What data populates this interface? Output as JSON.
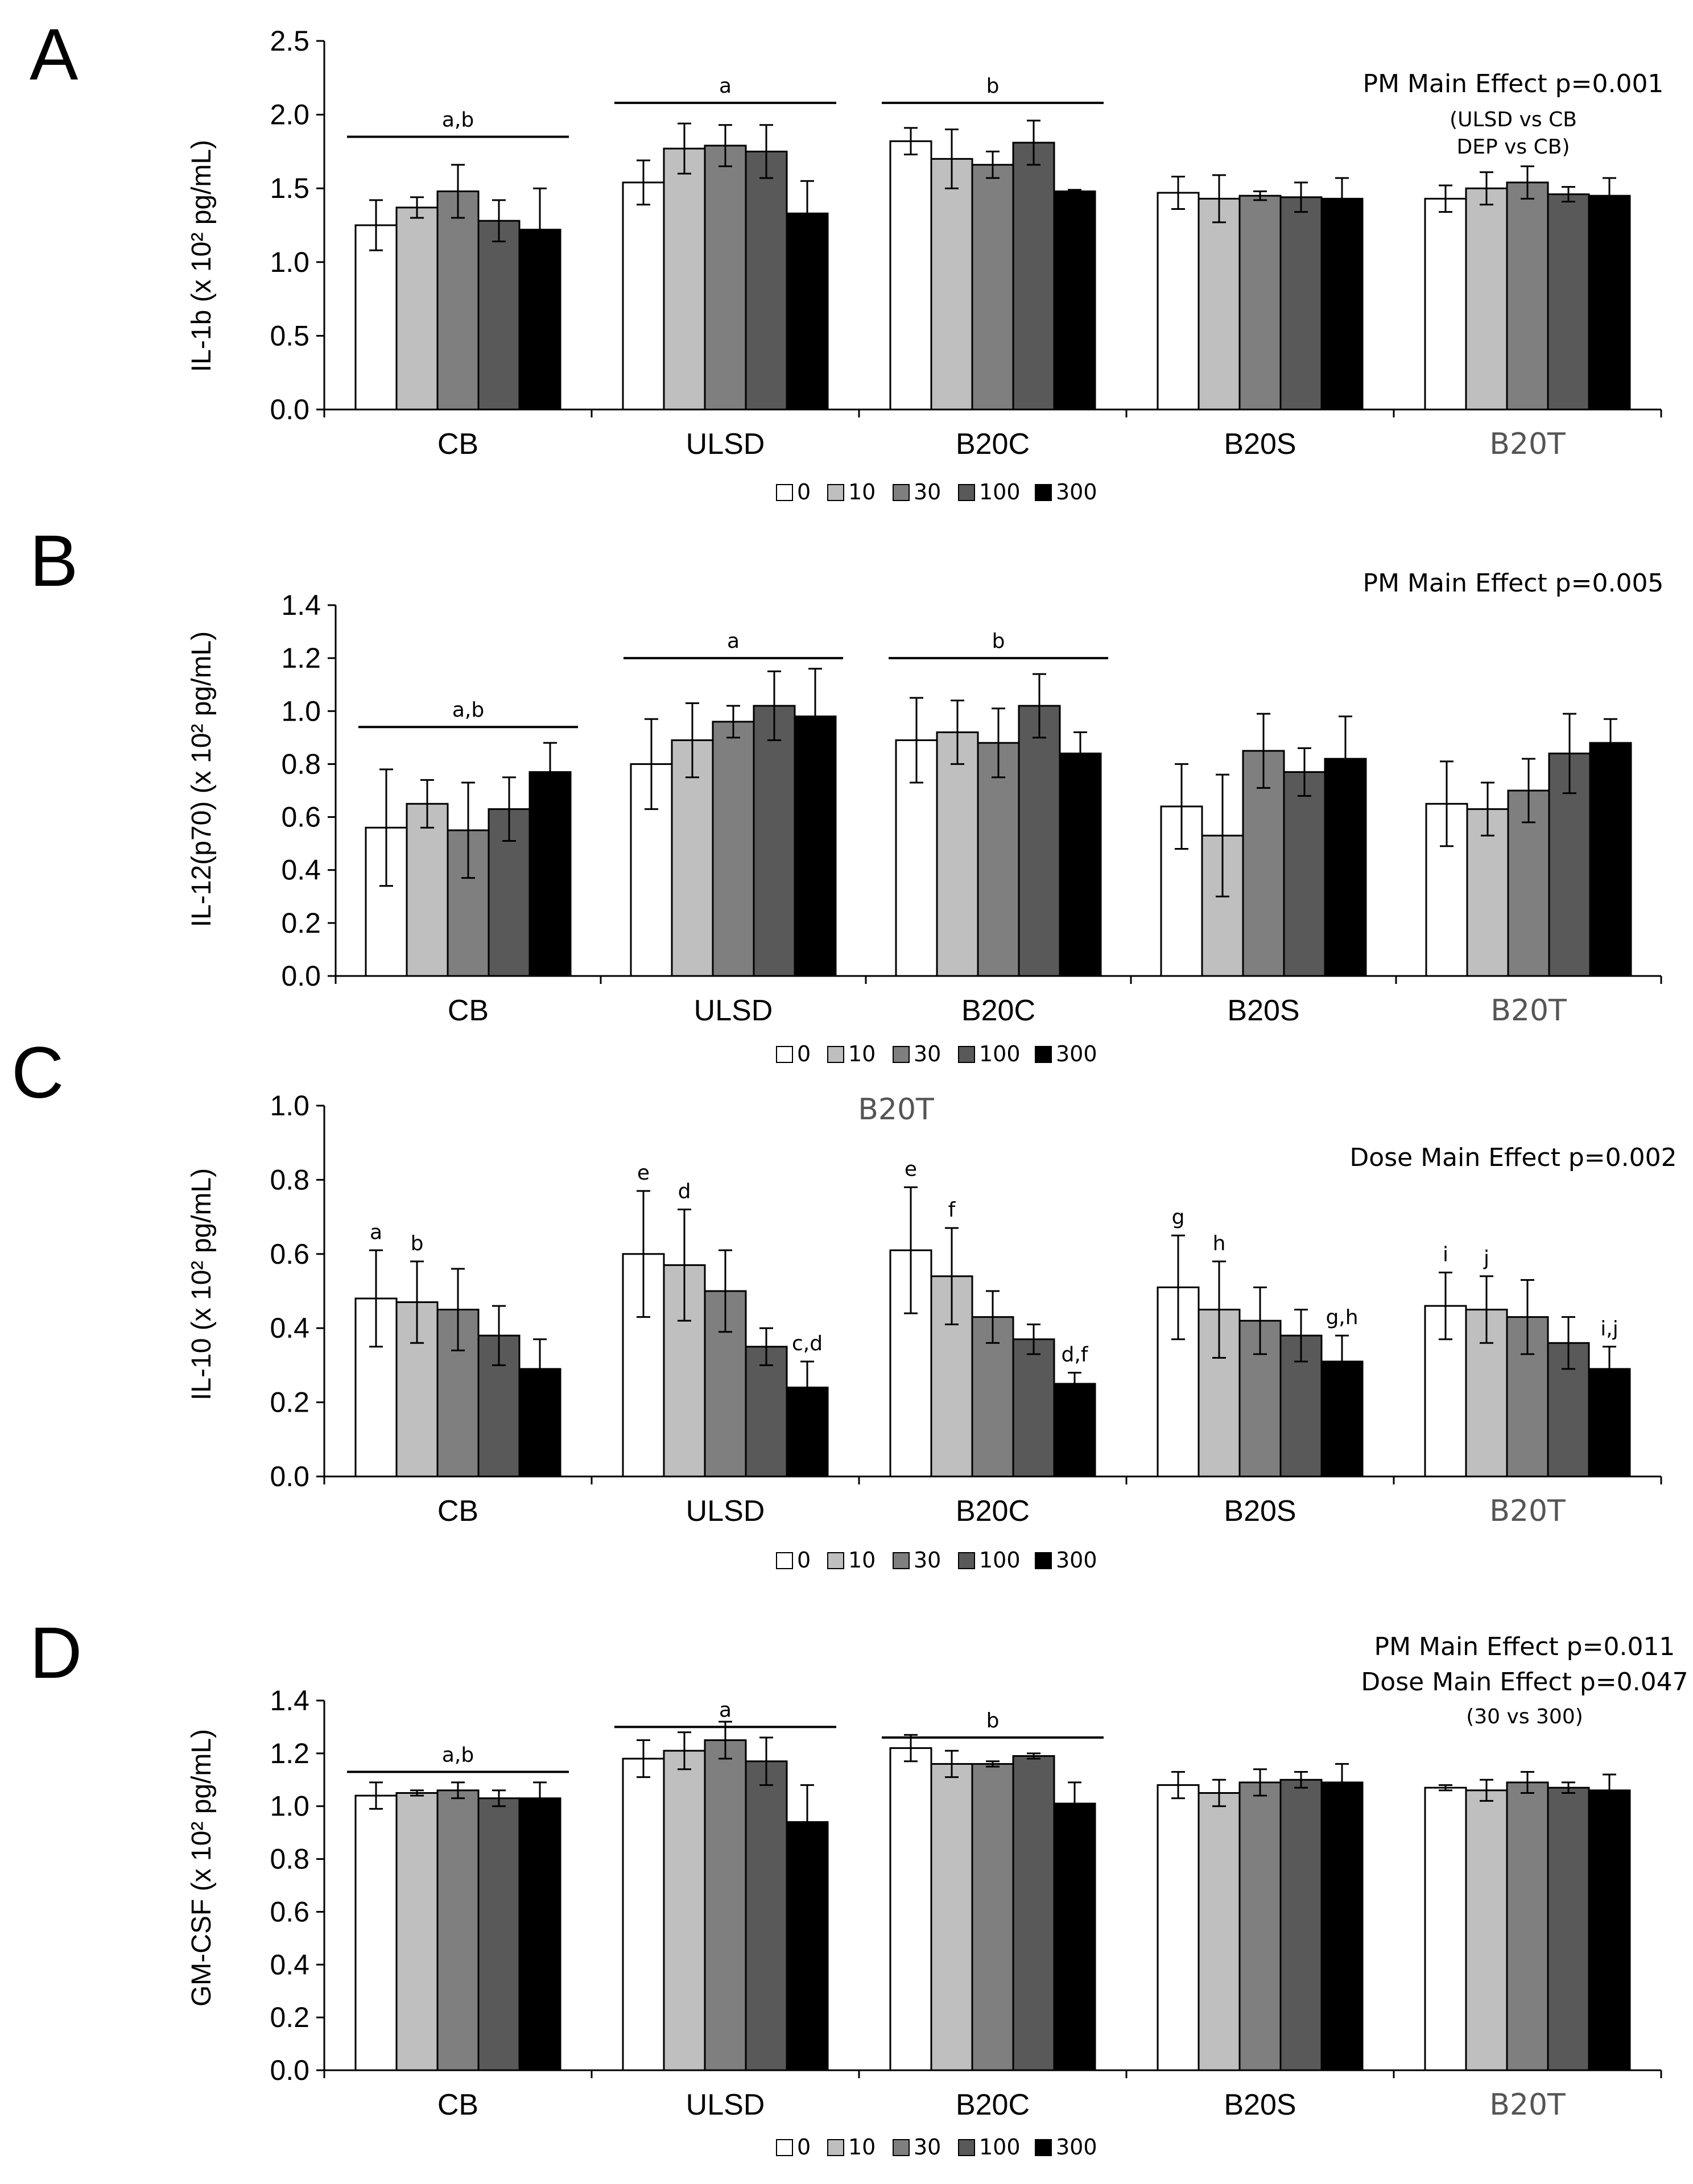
{
  "figure": {
    "categories": [
      "CB",
      "ULSD",
      "B20C",
      "B20S",
      "B20T"
    ],
    "legend": [
      "0",
      "10",
      "30",
      "100",
      "300"
    ],
    "colors": {
      "0": "#ffffff",
      "10": "#bfbfbf",
      "30": "#7f7f7f",
      "100": "#595959",
      "300": "#000000",
      "axis": "#000000",
      "light_label": "#555555"
    },
    "stray_label": "B20T"
  },
  "chart_data": [
    {
      "type": "bar",
      "panel": "A",
      "ylabel": "IL-1b (x 10² pg/mL)",
      "ylim": [
        0,
        2.5
      ],
      "yticks": [
        "0.0",
        "0.5",
        "1.0",
        "1.5",
        "2.0",
        "2.5"
      ],
      "annotations": [
        "PM Main Effect p=0.001",
        "(ULSD vs CB",
        "DEP vs CB)"
      ],
      "series": [
        {
          "name": "0",
          "values": [
            1.25,
            1.54,
            1.82,
            1.47,
            1.43
          ],
          "errors": [
            0.17,
            0.15,
            0.09,
            0.11,
            0.09
          ]
        },
        {
          "name": "10",
          "values": [
            1.37,
            1.77,
            1.7,
            1.43,
            1.5
          ],
          "errors": [
            0.07,
            0.17,
            0.2,
            0.16,
            0.11
          ]
        },
        {
          "name": "30",
          "values": [
            1.48,
            1.79,
            1.66,
            1.45,
            1.54
          ],
          "errors": [
            0.18,
            0.14,
            0.09,
            0.03,
            0.11
          ]
        },
        {
          "name": "100",
          "values": [
            1.28,
            1.75,
            1.81,
            1.44,
            1.46
          ],
          "errors": [
            0.14,
            0.18,
            0.15,
            0.1,
            0.05
          ]
        },
        {
          "name": "300",
          "values": [
            1.22,
            1.33,
            1.48,
            1.43,
            1.45
          ],
          "errors": [
            0.28,
            0.22,
            0.01,
            0.14,
            0.12
          ]
        }
      ],
      "brackets": [
        {
          "label": "a,b",
          "from": 0,
          "to": 0,
          "level": 1.85
        },
        {
          "label": "a",
          "from": 1,
          "to": 1,
          "level": 2.08
        },
        {
          "label": "b",
          "from": 2,
          "to": 2,
          "level": 2.08
        }
      ],
      "point_labels": []
    },
    {
      "type": "bar",
      "panel": "B",
      "ylabel": "IL-12(p70) (x 10² pg/mL)",
      "ylim": [
        0,
        1.4
      ],
      "yticks": [
        "0.0",
        "0.2",
        "0.4",
        "0.6",
        "0.8",
        "1.0",
        "1.2",
        "1.4"
      ],
      "annotations": [
        "PM Main Effect p=0.005"
      ],
      "series": [
        {
          "name": "0",
          "values": [
            0.56,
            0.8,
            0.89,
            0.64,
            0.65
          ],
          "errors": [
            0.22,
            0.17,
            0.16,
            0.16,
            0.16
          ]
        },
        {
          "name": "10",
          "values": [
            0.65,
            0.89,
            0.92,
            0.53,
            0.63
          ],
          "errors": [
            0.09,
            0.14,
            0.12,
            0.23,
            0.1
          ]
        },
        {
          "name": "30",
          "values": [
            0.55,
            0.96,
            0.88,
            0.85,
            0.7
          ],
          "errors": [
            0.18,
            0.06,
            0.13,
            0.14,
            0.12
          ]
        },
        {
          "name": "100",
          "values": [
            0.63,
            1.02,
            1.02,
            0.77,
            0.84
          ],
          "errors": [
            0.12,
            0.13,
            0.12,
            0.09,
            0.15
          ]
        },
        {
          "name": "300",
          "values": [
            0.77,
            0.98,
            0.84,
            0.82,
            0.88
          ],
          "errors": [
            0.11,
            0.18,
            0.08,
            0.16,
            0.09
          ]
        }
      ],
      "brackets": [
        {
          "label": "a,b",
          "from": 0,
          "to": 0,
          "level": 0.94
        },
        {
          "label": "a",
          "from": 1,
          "to": 1,
          "level": 1.2
        },
        {
          "label": "b",
          "from": 2,
          "to": 2,
          "level": 1.2
        }
      ],
      "point_labels": []
    },
    {
      "type": "bar",
      "panel": "C",
      "ylabel": "IL-10 (x 10² pg/mL)",
      "ylim": [
        0,
        1.0
      ],
      "yticks": [
        "0.0",
        "0.2",
        "0.4",
        "0.6",
        "0.8",
        "1.0"
      ],
      "annotations": [
        "Dose Main Effect p=0.002"
      ],
      "series": [
        {
          "name": "0",
          "values": [
            0.48,
            0.6,
            0.61,
            0.51,
            0.46
          ],
          "errors": [
            0.13,
            0.17,
            0.17,
            0.14,
            0.09
          ]
        },
        {
          "name": "10",
          "values": [
            0.47,
            0.57,
            0.54,
            0.45,
            0.45
          ],
          "errors": [
            0.11,
            0.15,
            0.13,
            0.13,
            0.09
          ]
        },
        {
          "name": "30",
          "values": [
            0.45,
            0.5,
            0.43,
            0.42,
            0.43
          ],
          "errors": [
            0.11,
            0.11,
            0.07,
            0.09,
            0.1
          ]
        },
        {
          "name": "100",
          "values": [
            0.38,
            0.35,
            0.37,
            0.38,
            0.36
          ],
          "errors": [
            0.08,
            0.05,
            0.04,
            0.07,
            0.07
          ]
        },
        {
          "name": "300",
          "values": [
            0.29,
            0.24,
            0.25,
            0.31,
            0.29
          ],
          "errors": [
            0.08,
            0.07,
            0.03,
            0.07,
            0.06
          ]
        }
      ],
      "brackets": [],
      "point_labels": [
        {
          "label": "a",
          "group": 0,
          "series": 0
        },
        {
          "label": "b",
          "group": 0,
          "series": 1
        },
        {
          "label": "e",
          "group": 1,
          "series": 0
        },
        {
          "label": "d",
          "group": 1,
          "series": 1
        },
        {
          "label": "c,d",
          "group": 1,
          "series": 4
        },
        {
          "label": "e",
          "group": 2,
          "series": 0
        },
        {
          "label": "f",
          "group": 2,
          "series": 1
        },
        {
          "label": "d,f",
          "group": 2,
          "series": 4
        },
        {
          "label": "g",
          "group": 3,
          "series": 0
        },
        {
          "label": "h",
          "group": 3,
          "series": 1
        },
        {
          "label": "g,h",
          "group": 3,
          "series": 4
        },
        {
          "label": "i",
          "group": 4,
          "series": 0
        },
        {
          "label": "j",
          "group": 4,
          "series": 1
        },
        {
          "label": "i,j",
          "group": 4,
          "series": 4
        }
      ]
    },
    {
      "type": "bar",
      "panel": "D",
      "ylabel": "GM-CSF (x 10² pg/mL)",
      "ylim": [
        0,
        1.4
      ],
      "yticks": [
        "0.0",
        "0.2",
        "0.4",
        "0.6",
        "0.8",
        "1.0",
        "1.2",
        "1.4"
      ],
      "annotations": [
        "PM Main Effect p=0.011",
        "Dose Main Effect p=0.047",
        "(30 vs 300)"
      ],
      "series": [
        {
          "name": "0",
          "values": [
            1.04,
            1.18,
            1.22,
            1.08,
            1.07
          ],
          "errors": [
            0.05,
            0.07,
            0.05,
            0.05,
            0.01
          ]
        },
        {
          "name": "10",
          "values": [
            1.05,
            1.21,
            1.16,
            1.05,
            1.06
          ],
          "errors": [
            0.01,
            0.07,
            0.05,
            0.05,
            0.04
          ]
        },
        {
          "name": "30",
          "values": [
            1.06,
            1.25,
            1.16,
            1.09,
            1.09
          ],
          "errors": [
            0.03,
            0.07,
            0.01,
            0.05,
            0.04
          ]
        },
        {
          "name": "100",
          "values": [
            1.03,
            1.17,
            1.19,
            1.1,
            1.07
          ],
          "errors": [
            0.03,
            0.09,
            0.01,
            0.03,
            0.02
          ]
        },
        {
          "name": "300",
          "values": [
            1.03,
            0.94,
            1.01,
            1.09,
            1.06
          ],
          "errors": [
            0.06,
            0.14,
            0.08,
            0.07,
            0.06
          ]
        }
      ],
      "brackets": [
        {
          "label": "a,b",
          "from": 0,
          "to": 0,
          "level": 1.13
        },
        {
          "label": "a",
          "from": 1,
          "to": 1,
          "level": 1.3
        },
        {
          "label": "b",
          "from": 2,
          "to": 2,
          "level": 1.26
        }
      ],
      "point_labels": []
    }
  ]
}
